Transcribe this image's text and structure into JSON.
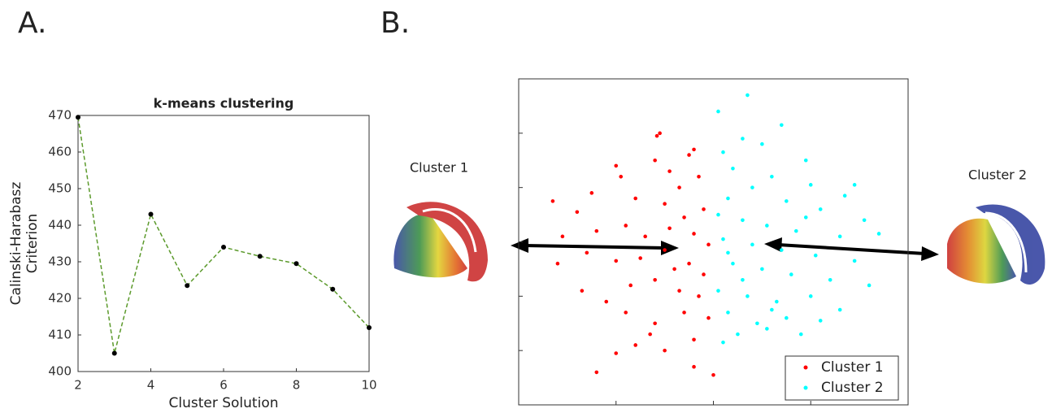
{
  "panels": {
    "a": "A.",
    "b": "B."
  },
  "images": {
    "left": "Cluster 1",
    "right": "Cluster 2"
  },
  "chart_data": [
    {
      "type": "line",
      "title": "k-means clustering",
      "xlabel": "Cluster Solution",
      "ylabel": [
        "Calinski-Harabasz",
        "Criterion"
      ],
      "x": [
        2,
        3,
        4,
        5,
        6,
        7,
        8,
        9,
        10
      ],
      "values": [
        469.5,
        405,
        443,
        423.5,
        434,
        431.5,
        429.5,
        422.5,
        412
      ],
      "color": "#5c9a2c",
      "marker_color": "#000000",
      "line_style": "dashed",
      "xlim": [
        2,
        10
      ],
      "xticks": [
        2,
        4,
        6,
        8,
        10
      ],
      "ylim": [
        400,
        470
      ],
      "yticks": [
        400,
        410,
        420,
        430,
        440,
        450,
        460,
        470
      ]
    },
    {
      "type": "scatter",
      "legend": "lower right",
      "xlim": [
        -2,
        2
      ],
      "xticks": [
        -1,
        0,
        1
      ],
      "ylim": [
        -3,
        3
      ],
      "yticks": [
        -2,
        -1,
        0,
        1,
        2
      ],
      "series": [
        {
          "name": "Cluster 1",
          "color": "#ff0000",
          "x": [
            -0.55,
            -0.58,
            -0.2,
            -0.25,
            -1.0,
            -0.95,
            -0.6,
            -0.45,
            -0.15,
            -0.35,
            -1.65,
            -1.4,
            -1.25,
            -0.8,
            -0.5,
            -0.1,
            -0.3,
            -1.55,
            -1.2,
            -0.9,
            -0.7,
            -0.45,
            -0.2,
            -0.05,
            -1.6,
            -1.3,
            -1.0,
            -0.75,
            -0.5,
            -0.25,
            -0.1,
            -1.35,
            -1.1,
            -0.85,
            -0.6,
            -0.35,
            -0.15,
            -0.9,
            -0.6,
            -0.3,
            -0.05,
            -0.2,
            -0.8,
            -0.5,
            -0.65,
            -1.0,
            -1.2,
            -0.2,
            0.0,
            -0.4
          ],
          "y": [
            2.0,
            1.95,
            1.7,
            1.6,
            1.4,
            1.2,
            1.5,
            1.3,
            1.2,
            1.0,
            0.75,
            0.55,
            0.9,
            0.8,
            0.7,
            0.6,
            0.45,
            0.1,
            0.2,
            0.3,
            0.1,
            0.25,
            0.15,
            -0.05,
            -0.4,
            -0.2,
            -0.35,
            -0.3,
            -0.15,
            -0.4,
            -0.6,
            -0.9,
            -1.1,
            -0.8,
            -0.7,
            -0.9,
            -1.0,
            -1.3,
            -1.5,
            -1.3,
            -1.4,
            -1.8,
            -1.9,
            -2.0,
            -1.7,
            -2.05,
            -2.4,
            -2.3,
            -2.45,
            -0.5
          ]
        },
        {
          "name": "Cluster 2",
          "color": "#00ffff",
          "x": [
            0.05,
            0.35,
            0.7,
            0.3,
            0.1,
            0.5,
            0.95,
            0.2,
            0.6,
            1.0,
            1.45,
            1.35,
            0.4,
            0.15,
            0.75,
            1.1,
            1.55,
            0.05,
            0.3,
            0.55,
            0.85,
            1.3,
            1.7,
            0.1,
            0.4,
            0.7,
            1.05,
            1.45,
            0.2,
            0.5,
            0.8,
            1.2,
            1.6,
            0.05,
            0.35,
            0.65,
            1.0,
            1.3,
            0.15,
            0.45,
            0.75,
            1.1,
            0.25,
            0.55,
            0.9,
            0.1,
            0.6,
            0.3,
            0.95,
            0.15
          ],
          "y": [
            2.4,
            2.7,
            2.15,
            1.9,
            1.65,
            1.8,
            1.5,
            1.35,
            1.2,
            1.05,
            1.05,
            0.85,
            1.0,
            0.8,
            0.75,
            0.6,
            0.4,
            0.5,
            0.4,
            0.3,
            0.2,
            0.1,
            0.15,
            0.05,
            -0.05,
            -0.15,
            -0.25,
            -0.35,
            -0.4,
            -0.5,
            -0.6,
            -0.7,
            -0.8,
            -0.9,
            -1.0,
            -1.1,
            -1.0,
            -1.25,
            -1.3,
            -1.5,
            -1.4,
            -1.45,
            -1.7,
            -1.6,
            -1.7,
            -1.85,
            -1.25,
            -0.7,
            0.45,
            -0.2
          ]
        }
      ]
    }
  ]
}
